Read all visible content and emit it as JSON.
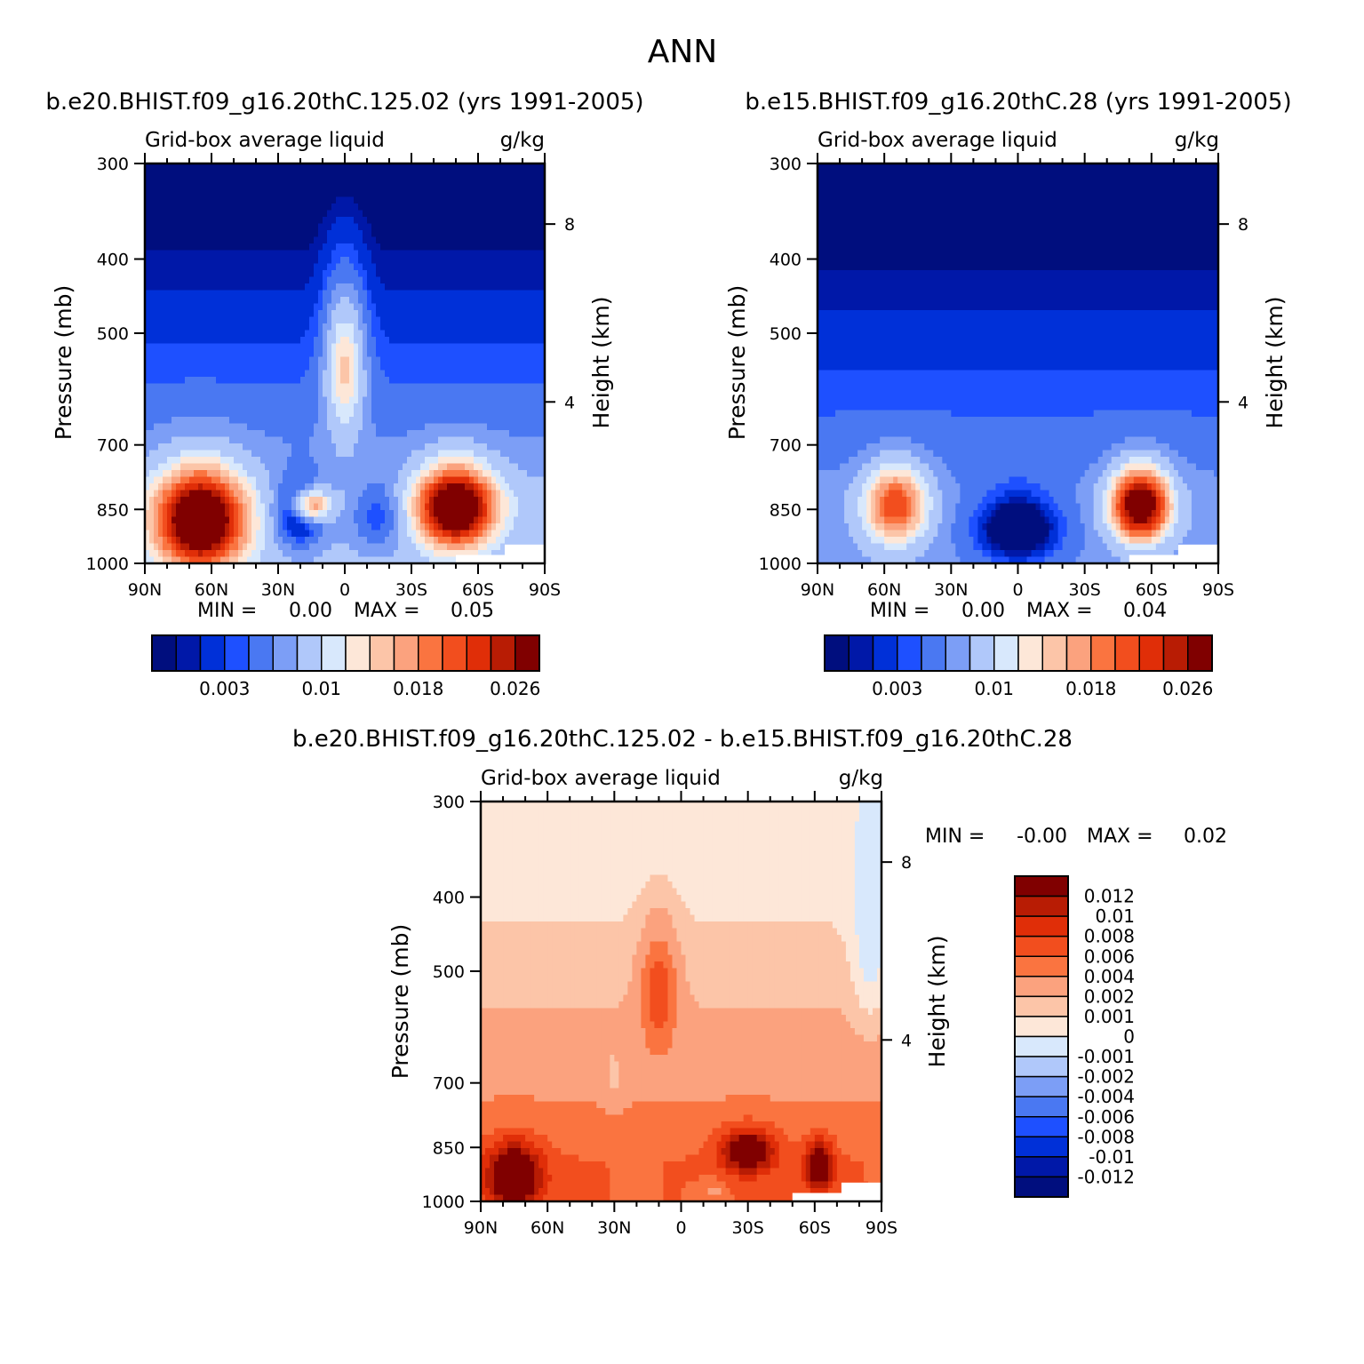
{
  "figure": {
    "title": "ANN"
  },
  "scales": {
    "absolute": {
      "colors": [
        "#000e7e",
        "#0018a8",
        "#0030d8",
        "#1e50ff",
        "#4a78f2",
        "#7c9ef6",
        "#b0c8fa",
        "#d8e8fc",
        "#fde7d8",
        "#fcc5a8",
        "#fba27e",
        "#fa7440",
        "#f24e1e",
        "#e02e08",
        "#b81c04",
        "#800000"
      ],
      "tick_labels": [
        "0.003",
        "0.01",
        "0.018",
        "0.026"
      ]
    },
    "difference": {
      "colors": [
        "#800000",
        "#b81c04",
        "#e02e08",
        "#f24e1e",
        "#fa7440",
        "#fba27e",
        "#fcc5a8",
        "#fde7d8",
        "#d8e8fc",
        "#b0c8fa",
        "#7c9ef6",
        "#4a78f2",
        "#1e50ff",
        "#0030d8",
        "#0018a8",
        "#000e7e"
      ],
      "tick_labels": [
        "0.012",
        "0.01",
        "0.008",
        "0.006",
        "0.004",
        "0.002",
        "0.001",
        "0",
        "-0.001",
        "-0.002",
        "-0.004",
        "-0.006",
        "-0.008",
        "-0.01",
        "-0.012"
      ]
    }
  },
  "chart_data": [
    {
      "type": "heatmap",
      "title": "b.e20.BHIST.f09_g16.20thC.125.02 (yrs 1991-2005)",
      "variable": "Grid-box average liquid",
      "units": "g/kg",
      "xlabel": "",
      "ylabel": "Pressure (mb)",
      "y2label": "Height (km)",
      "x_ticks": [
        "90N",
        "60N",
        "30N",
        "0",
        "30S",
        "60S",
        "90S"
      ],
      "x_range": [
        90,
        -90
      ],
      "y_ticks": [
        300,
        400,
        500,
        700,
        850,
        1000
      ],
      "y_range": [
        300,
        1000
      ],
      "y2_ticks": [
        8,
        4
      ],
      "min_label": "MIN =",
      "min_value": "0.00",
      "max_label": "MAX =",
      "max_value": "0.05",
      "features": [
        {
          "lat": 65,
          "p": 880,
          "value": 0.026,
          "sx": 20,
          "sy": 130
        },
        {
          "lat": -50,
          "p": 845,
          "value": 0.026,
          "sx": 17,
          "sy": 100
        },
        {
          "lat": 15,
          "p": 840,
          "value": 0.016,
          "sx": 8,
          "sy": 40
        },
        {
          "lat": 0,
          "p": 550,
          "value": 0.012,
          "sx": 9,
          "sy": 120
        },
        {
          "lat": 20,
          "p": 860,
          "value": -0.01,
          "sx": 12,
          "sy": 90
        },
        {
          "lat": -15,
          "p": 870,
          "value": -0.006,
          "sx": 12,
          "sy": 90
        }
      ],
      "background": {
        "surface": 0.008,
        "top": 0.0,
        "peak_level": 820
      }
    },
    {
      "type": "heatmap",
      "title": "b.e15.BHIST.f09_g16.20thC.28 (yrs 1991-2005)",
      "variable": "Grid-box average liquid",
      "units": "g/kg",
      "xlabel": "",
      "ylabel": "Pressure (mb)",
      "y2label": "Height (km)",
      "x_ticks": [
        "90N",
        "60N",
        "30N",
        "0",
        "30S",
        "60S",
        "90S"
      ],
      "x_range": [
        90,
        -90
      ],
      "y_ticks": [
        300,
        400,
        500,
        700,
        850,
        1000
      ],
      "y_range": [
        300,
        1000
      ],
      "y2_ticks": [
        8,
        4
      ],
      "min_label": "MIN =",
      "min_value": "0.00",
      "max_label": "MAX =",
      "max_value": "0.04",
      "features": [
        {
          "lat": 55,
          "p": 840,
          "value": 0.016,
          "sx": 14,
          "sy": 100
        },
        {
          "lat": -55,
          "p": 840,
          "value": 0.026,
          "sx": 13,
          "sy": 90
        },
        {
          "lat": 0,
          "p": 900,
          "value": -0.008,
          "sx": 22,
          "sy": 110
        }
      ],
      "background": {
        "surface": 0.006,
        "top": 0.0,
        "peak_level": 820
      }
    },
    {
      "type": "heatmap",
      "title": "b.e20.BHIST.f09_g16.20thC.125.02 - b.e15.BHIST.f09_g16.20thC.28",
      "variable": "Grid-box average liquid",
      "units": "g/kg",
      "xlabel": "",
      "ylabel": "Pressure (mb)",
      "y2label": "Height (km)",
      "x_ticks": [
        "90N",
        "60N",
        "30N",
        "0",
        "30S",
        "60S",
        "90S"
      ],
      "x_range": [
        90,
        -90
      ],
      "y_ticks": [
        300,
        400,
        500,
        700,
        850,
        1000
      ],
      "y_range": [
        300,
        1000
      ],
      "y2_ticks": [
        8,
        4
      ],
      "min_label": "MIN =",
      "min_value": "-0.00",
      "max_label": "MAX =",
      "max_value": "0.02",
      "features": [
        {
          "lat": 75,
          "p": 930,
          "value": 0.012,
          "sx": 12,
          "sy": 90
        },
        {
          "lat": 10,
          "p": 530,
          "value": 0.006,
          "sx": 8,
          "sy": 90
        },
        {
          "lat": -30,
          "p": 860,
          "value": 0.01,
          "sx": 12,
          "sy": 60
        },
        {
          "lat": -62,
          "p": 900,
          "value": 0.01,
          "sx": 6,
          "sy": 70
        },
        {
          "lat": 30,
          "p": 700,
          "value": -0.002,
          "sx": 5,
          "sy": 60
        },
        {
          "lat": -15,
          "p": 970,
          "value": -0.003,
          "sx": 5,
          "sy": 30
        },
        {
          "lat": 20,
          "p": 880,
          "value": -0.001,
          "sx": 4,
          "sy": 60
        },
        {
          "lat": -85,
          "p": 450,
          "value": -0.002,
          "sx": 8,
          "sy": 150
        }
      ],
      "background": {
        "surface": 0.006,
        "top": 0.0005,
        "peak_level": 880
      }
    }
  ]
}
